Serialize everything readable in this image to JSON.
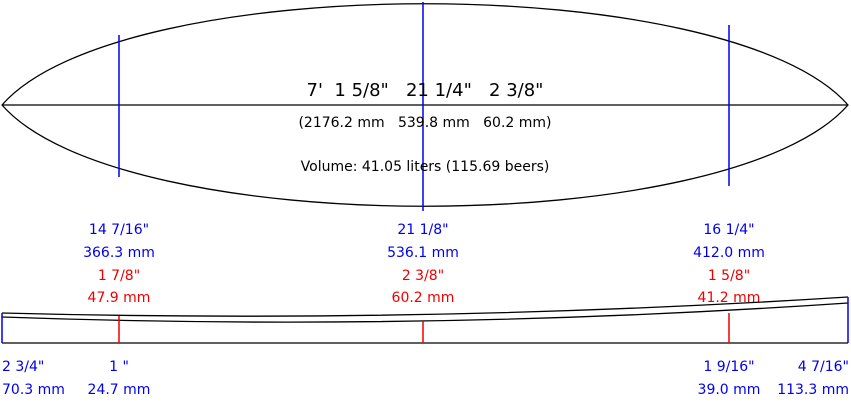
{
  "summary": {
    "dimensions_imperial": "7'  1 5/8\"   21 1/4\"   2 3/8\"",
    "dimensions_metric": "(2176.2 mm   539.8 mm   60.2 mm)",
    "volume": "Volume: 41.05 liters (115.69 beers)"
  },
  "stations": [
    {
      "width_in": "14 7/16\"",
      "width_mm": "366.3 mm",
      "thickness_in": "1 7/8\"",
      "thickness_mm": "47.9 mm"
    },
    {
      "width_in": "21 1/8\"",
      "width_mm": "536.1 mm",
      "thickness_in": "2 3/8\"",
      "thickness_mm": "60.2 mm"
    },
    {
      "width_in": "16 1/4\"",
      "width_mm": "412.0 mm",
      "thickness_in": "1 5/8\"",
      "thickness_mm": "41.2 mm"
    }
  ],
  "rocker": [
    {
      "in": "2 3/4\"",
      "mm": "70.3 mm"
    },
    {
      "in": "1 \"",
      "mm": "24.7 mm"
    },
    {
      "in": "1 9/16\"",
      "mm": "39.0 mm"
    },
    {
      "in": "4 7/16\"",
      "mm": "113.3 mm"
    }
  ]
}
